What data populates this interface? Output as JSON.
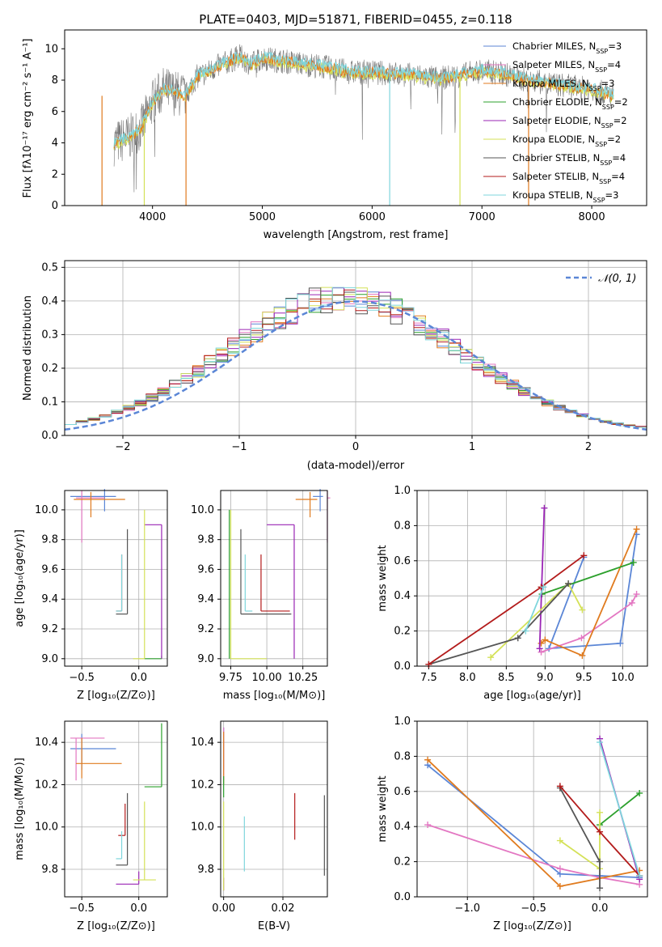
{
  "colors": [
    "#5b86d6",
    "#e377c2",
    "#e07b1f",
    "#2ca02c",
    "#9a25b5",
    "#d4e157",
    "#555555",
    "#b31b1b",
    "#7fd6dc"
  ],
  "chart_data": [
    {
      "type": "line",
      "title": "PLATE=0403, MJD=51871, FIBERID=0455, z=0.118",
      "xlabel": "wavelength [Angstrom, rest frame]",
      "ylabel": "Flux [fλ10⁻¹⁷ erg cm⁻² s⁻¹ A⁻¹]",
      "xlim": [
        3200,
        8500
      ],
      "ylim": [
        0,
        11.2
      ],
      "xticks": [
        "4000",
        "5000",
        "6000",
        "7000",
        "8000"
      ],
      "yticks": [
        "0",
        "2",
        "4",
        "6",
        "8",
        "10"
      ],
      "grid": false,
      "legend_position": "upper right",
      "series": [
        {
          "name": "Chabrier MILES, N_SSP=3"
        },
        {
          "name": "Salpeter MILES, N_SSP=4"
        },
        {
          "name": "Kroupa MILES, N_SSP=3"
        },
        {
          "name": "Chabrier ELODIE, N_SSP=2"
        },
        {
          "name": "Salpeter ELODIE, N_SSP=2"
        },
        {
          "name": "Kroupa ELODIE, N_SSP=2"
        },
        {
          "name": "Chabrier STELIB, N_SSP=4"
        },
        {
          "name": "Salpeter STELIB, N_SSP=4"
        },
        {
          "name": "Kroupa STELIB, N_SSP=3"
        }
      ],
      "continuum": {
        "x": [
          3650,
          3700,
          3800,
          3900,
          4000,
          4100,
          4200,
          4300,
          4400,
          4500,
          4600,
          4700,
          4800,
          4900,
          5000,
          5200,
          5400,
          5600,
          5800,
          6000,
          6200,
          6400,
          6600,
          6800,
          7000,
          7200,
          7400,
          7600,
          7800,
          8000,
          8200
        ],
        "y": [
          4.0,
          4.1,
          4.4,
          5.0,
          6.6,
          7.4,
          7.2,
          7.0,
          8.2,
          8.5,
          8.9,
          9.2,
          9.5,
          9.0,
          9.4,
          9.2,
          9.0,
          8.8,
          8.5,
          8.5,
          8.4,
          8.3,
          8.1,
          8.3,
          8.6,
          8.4,
          8.0,
          7.8,
          7.6,
          7.4,
          7.0
        ]
      }
    },
    {
      "type": "bar",
      "xlabel": "(data-model)/error",
      "ylabel": "Normed distribution",
      "xlim": [
        -2.5,
        2.5
      ],
      "ylim": [
        0,
        0.52
      ],
      "xticks": [
        "−2",
        "−1",
        "0",
        "1",
        "2"
      ],
      "yticks": [
        "0.0",
        "0.1",
        "0.2",
        "0.3",
        "0.4",
        "0.5"
      ],
      "grid": true,
      "legend": "𝒩(0, 1)",
      "bin_width": 0.1
    },
    {
      "type": "scatter",
      "xlabel": "Z [log₁₀(Z/Z⊙)]",
      "ylabel": "age  [log₁₀(age/yr)]",
      "xlim": [
        -0.65,
        0.25
      ],
      "ylim": [
        8.95,
        10.13
      ],
      "xticks": [
        "−0.5",
        "0.0"
      ],
      "yticks": [
        "9.0",
        "9.2",
        "9.4",
        "9.6",
        "9.8",
        "10.0"
      ],
      "crosses": [
        {
          "x": -0.3,
          "y": 10.09,
          "xerr": [
            0.3,
            0.1
          ],
          "yerr": [
            0.1,
            0.05
          ]
        },
        {
          "x": -0.5,
          "y": 10.08,
          "xerr": [
            0.05,
            0.2
          ],
          "yerr": [
            0.3,
            0.05
          ]
        },
        {
          "x": -0.42,
          "y": 10.07,
          "xerr": [
            0.15,
            0.3
          ],
          "yerr": [
            0.12,
            0.05
          ]
        },
        {
          "x": 0.2,
          "y": 9.0,
          "xerr": [
            0.15,
            0.0
          ],
          "yerr": [
            0.0,
            0.02
          ]
        },
        {
          "x": 0.2,
          "y": 9.9,
          "xerr": [
            0.15,
            0.0
          ],
          "yerr": [
            0.9,
            0.0
          ]
        },
        {
          "x": 0.05,
          "y": 9.0,
          "xerr": [
            0.1,
            0.0
          ],
          "yerr": [
            0.0,
            1.0
          ]
        },
        {
          "x": -0.1,
          "y": 9.3,
          "xerr": [
            0.1,
            0.0
          ],
          "yerr": [
            0.0,
            0.57
          ]
        },
        {
          "x": -0.15,
          "y": 9.32,
          "xerr": [
            0.05,
            0.0
          ],
          "yerr": [
            0.0,
            0.38
          ]
        },
        {
          "x": -0.15,
          "y": 9.32,
          "xerr": [
            0.05,
            0.0
          ],
          "yerr": [
            0.0,
            0.38
          ]
        }
      ]
    },
    {
      "type": "scatter",
      "xlabel": "mass [log₁₀(M/M⊙)]",
      "ylabel": "",
      "xlim": [
        9.68,
        10.42
      ],
      "ylim": [
        8.95,
        10.13
      ],
      "xticks": [
        "9.75",
        "10.00",
        "10.25"
      ],
      "yticks": [
        "9.0",
        "9.2",
        "9.4",
        "9.6",
        "9.8",
        "10.0"
      ],
      "crosses": [
        {
          "x": 10.37,
          "y": 10.09,
          "xerr": [
            0.05,
            0.02
          ],
          "yerr": [
            0.1,
            0.05
          ]
        },
        {
          "x": 10.42,
          "y": 10.08,
          "xerr": [
            0.0,
            0.02
          ],
          "yerr": [
            0.3,
            0.05
          ]
        },
        {
          "x": 10.3,
          "y": 10.07,
          "xerr": [
            0.1,
            0.05
          ],
          "yerr": [
            0.12,
            0.05
          ]
        },
        {
          "x": 9.74,
          "y": 9.0,
          "xerr": [
            0.0,
            0.0
          ],
          "yerr": [
            0.0,
            1.0
          ]
        },
        {
          "x": 10.19,
          "y": 9.9,
          "xerr": [
            0.19,
            0.0
          ],
          "yerr": [
            0.9,
            0.0
          ]
        },
        {
          "x": 9.75,
          "y": 9.0,
          "xerr": [
            0.0,
            0.25
          ],
          "yerr": [
            0.0,
            1.0
          ]
        },
        {
          "x": 9.82,
          "y": 9.3,
          "xerr": [
            0.0,
            0.35
          ],
          "yerr": [
            0.0,
            0.57
          ]
        },
        {
          "x": 9.96,
          "y": 9.32,
          "xerr": [
            0.0,
            0.2
          ],
          "yerr": [
            0.0,
            0.38
          ]
        },
        {
          "x": 9.85,
          "y": 9.32,
          "xerr": [
            0.0,
            0.05
          ],
          "yerr": [
            0.0,
            0.38
          ]
        }
      ]
    },
    {
      "type": "line",
      "xlabel": "age  [log₁₀(age/yr)]",
      "ylabel": "mass weight",
      "xlim": [
        7.35,
        10.32
      ],
      "ylim": [
        0,
        1.0
      ],
      "xticks": [
        "7.5",
        "8.0",
        "8.5",
        "9.0",
        "9.5",
        "10.0"
      ],
      "yticks": [
        "0.0",
        "0.2",
        "0.4",
        "0.6",
        "0.8",
        "1.0"
      ],
      "grid": true,
      "series": [
        {
          "x": [
            10.18,
            9.97,
            9.05,
            9.5
          ],
          "y": [
            0.75,
            0.13,
            0.1,
            0.62
          ]
        },
        {
          "x": [
            10.18,
            10.12,
            9.47,
            8.95
          ],
          "y": [
            0.41,
            0.36,
            0.16,
            0.08
          ]
        },
        {
          "x": [
            10.18,
            9.48,
            9.0,
            8.95
          ],
          "y": [
            0.78,
            0.06,
            0.15,
            0.13
          ]
        },
        {
          "x": [
            10.14,
            8.96
          ],
          "y": [
            0.59,
            0.41
          ]
        },
        {
          "x": [
            8.93,
            8.99
          ],
          "y": [
            0.1,
            0.9
          ]
        },
        {
          "x": [
            9.48,
            9.3,
            8.3
          ],
          "y": [
            0.32,
            0.47,
            0.05
          ]
        },
        {
          "x": [
            9.3,
            8.65,
            7.5
          ],
          "y": [
            0.47,
            0.16,
            0.01
          ]
        },
        {
          "x": [
            9.5,
            8.95,
            7.5
          ],
          "y": [
            0.63,
            0.45,
            0.01
          ]
        },
        {
          "x": [
            8.98,
            8.75
          ],
          "y": [
            0.45,
            0.2
          ]
        }
      ]
    },
    {
      "type": "scatter",
      "xlabel": "Z [log₁₀(Z/Z⊙)]",
      "ylabel": "mass [log₁₀(M/M⊙)]",
      "xlim": [
        -0.65,
        0.25
      ],
      "ylim": [
        9.67,
        10.5
      ],
      "xticks": [
        "−0.5",
        "0.0"
      ],
      "yticks": [
        "9.8",
        "10.0",
        "10.2",
        "10.4"
      ],
      "crosses": [
        {
          "x": -0.5,
          "y": 10.37,
          "xerr": [
            0.1,
            0.3
          ],
          "yerr": [
            0.1,
            0.07
          ]
        },
        {
          "x": -0.55,
          "y": 10.42,
          "xerr": [
            0.05,
            0.25
          ],
          "yerr": [
            0.2,
            0.0
          ]
        },
        {
          "x": -0.5,
          "y": 10.3,
          "xerr": [
            0.05,
            0.35
          ],
          "yerr": [
            0.07,
            0.12
          ]
        },
        {
          "x": 0.2,
          "y": 10.19,
          "xerr": [
            0.15,
            0.0
          ],
          "yerr": [
            0.0,
            0.3
          ]
        },
        {
          "x": 0.0,
          "y": 9.73,
          "xerr": [
            0.2,
            0.0
          ],
          "yerr": [
            0.0,
            0.06
          ]
        },
        {
          "x": 0.05,
          "y": 9.75,
          "xerr": [
            0.1,
            0.1
          ],
          "yerr": [
            0.0,
            0.37
          ]
        },
        {
          "x": -0.1,
          "y": 9.82,
          "xerr": [
            0.1,
            0.0
          ],
          "yerr": [
            0.0,
            0.34
          ]
        },
        {
          "x": -0.12,
          "y": 9.96,
          "xerr": [
            0.06,
            0.0
          ],
          "yerr": [
            0.0,
            0.15
          ]
        },
        {
          "x": -0.15,
          "y": 9.85,
          "xerr": [
            0.05,
            0.0
          ],
          "yerr": [
            0.0,
            0.13
          ]
        }
      ]
    },
    {
      "type": "scatter",
      "xlabel": "E(B-V)",
      "ylabel": "",
      "xlim": [
        -0.001,
        0.035
      ],
      "ylim": [
        9.67,
        10.5
      ],
      "xticks": [
        "0.00",
        "0.02"
      ],
      "yticks": [
        "9.8",
        "10.0",
        "10.2",
        "10.4"
      ],
      "crosses": [
        {
          "x": 0.0,
          "y": 10.37,
          "xerr": [
            0,
            0
          ],
          "yerr": [
            0.1,
            0.1
          ]
        },
        {
          "x": 0.0,
          "y": 10.42,
          "xerr": [
            0,
            0
          ],
          "yerr": [
            0.2,
            0.05
          ]
        },
        {
          "x": 0.0,
          "y": 10.3,
          "xerr": [
            0,
            0
          ],
          "yerr": [
            0.1,
            0.15
          ]
        },
        {
          "x": 0.0,
          "y": 10.19,
          "xerr": [
            0,
            0
          ],
          "yerr": [
            0.05,
            0.05
          ]
        },
        {
          "x": 0.0,
          "y": 9.73,
          "xerr": [
            0,
            0
          ],
          "yerr": [
            0.03,
            0.03
          ]
        },
        {
          "x": 0.0,
          "y": 9.9,
          "xerr": [
            0,
            0
          ],
          "yerr": [
            0.2,
            0.22
          ]
        },
        {
          "x": 0.034,
          "y": 9.96,
          "xerr": [
            0,
            0
          ],
          "yerr": [
            0.19,
            0.19
          ]
        },
        {
          "x": 0.024,
          "y": 10.05,
          "xerr": [
            0,
            0
          ],
          "yerr": [
            0.11,
            0.11
          ]
        },
        {
          "x": 0.007,
          "y": 9.92,
          "xerr": [
            0,
            0
          ],
          "yerr": [
            0.13,
            0.13
          ]
        }
      ]
    },
    {
      "type": "line",
      "xlabel": "Z [log₁₀(Z/Z⊙)]",
      "ylabel": "mass weight",
      "xlim": [
        -1.38,
        0.36
      ],
      "ylim": [
        0,
        1.0
      ],
      "xticks": [
        "−1.0",
        "−0.5",
        "0.0"
      ],
      "yticks": [
        "0.0",
        "0.2",
        "0.4",
        "0.6",
        "0.8",
        "1.0"
      ],
      "grid": true,
      "series": [
        {
          "x": [
            -1.3,
            -0.3,
            0.0,
            0.3
          ],
          "y": [
            0.75,
            0.13,
            0.12,
            0.11
          ]
        },
        {
          "x": [
            -1.3,
            -0.3,
            0.0,
            0.3
          ],
          "y": [
            0.41,
            0.16,
            0.11,
            0.07
          ]
        },
        {
          "x": [
            -1.3,
            -0.3,
            0.3
          ],
          "y": [
            0.78,
            0.06,
            0.15
          ]
        },
        {
          "x": [
            0.0,
            0.3
          ],
          "y": [
            0.41,
            0.59
          ]
        },
        {
          "x": [
            0.0,
            0.3
          ],
          "y": [
            0.9,
            0.1
          ]
        },
        {
          "x": [
            -0.3,
            0.0,
            0.0
          ],
          "y": [
            0.32,
            0.16,
            0.48
          ]
        },
        {
          "x": [
            -0.3,
            0.0,
            0.0
          ],
          "y": [
            0.62,
            0.2,
            0.05
          ]
        },
        {
          "x": [
            -0.3,
            0.0,
            0.3
          ],
          "y": [
            0.63,
            0.37,
            0.12
          ]
        },
        {
          "x": [
            0.0,
            0.3
          ],
          "y": [
            0.88,
            0.12
          ]
        }
      ]
    }
  ]
}
